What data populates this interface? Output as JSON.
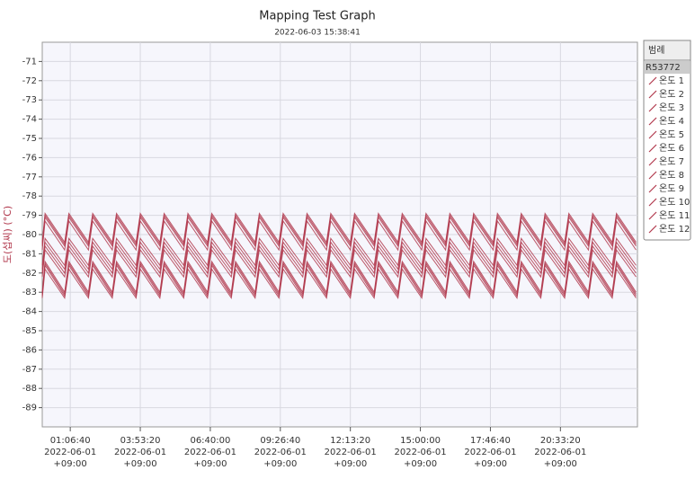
{
  "chart_data": {
    "type": "line",
    "title": "Mapping Test Graph",
    "subtitle": "2022-06-03 15:38:41",
    "y_label": "도(섭씨) (°C)",
    "legend_title": "범례",
    "legend_group": "R53772",
    "color": "#b23a4e",
    "grid": true,
    "xlim": [
      0,
      85000
    ],
    "ylim": [
      -90,
      -70
    ],
    "yticks": [
      -71,
      -72,
      -73,
      -74,
      -75,
      -76,
      -77,
      -78,
      -79,
      -80,
      -81,
      -82,
      -83,
      -84,
      -85,
      -86,
      -87,
      -88,
      -89
    ],
    "xticks": [
      {
        "value": 4000,
        "label": "01:06:40\n2022-06-01\n+09:00"
      },
      {
        "value": 14000,
        "label": "03:53:20\n2022-06-01\n+09:00"
      },
      {
        "value": 24000,
        "label": "06:40:00\n2022-06-01\n+09:00"
      },
      {
        "value": 34000,
        "label": "09:26:40\n2022-06-01\n+09:00"
      },
      {
        "value": 44000,
        "label": "12:13:20\n2022-06-01\n+09:00"
      },
      {
        "value": 54000,
        "label": "15:00:00\n2022-06-01\n+09:00"
      },
      {
        "value": 64000,
        "label": "17:46:40\n2022-06-01\n+09:00"
      },
      {
        "value": 74000,
        "label": "20:33:20\n2022-06-01\n+09:00"
      }
    ],
    "x": [
      0,
      400,
      3200,
      3800,
      6600,
      7200,
      10000,
      10600,
      13400,
      14000,
      16800,
      17400,
      20200,
      20800,
      23600,
      24200,
      27000,
      27600,
      30400,
      31000,
      33800,
      34400,
      37200,
      37800,
      40600,
      41200,
      44000,
      44600,
      47400,
      48000,
      50800,
      51400,
      54200,
      54800,
      57600,
      58200,
      61000,
      61600,
      64400,
      65000,
      67800,
      68400,
      71200,
      71800,
      74600,
      75200,
      78000,
      78600,
      81400,
      82000,
      84800
    ],
    "series": [
      {
        "name": "온도 1",
        "values": [
          -80.4,
          -78.9,
          -80.4,
          -78.9,
          -80.4,
          -78.9,
          -80.4,
          -78.9,
          -80.4,
          -78.9,
          -80.4,
          -78.9,
          -80.4,
          -78.9,
          -80.4,
          -78.9,
          -80.4,
          -78.9,
          -80.4,
          -78.9,
          -80.4,
          -78.9,
          -80.4,
          -78.9,
          -80.4,
          -78.9,
          -80.4,
          -78.9,
          -80.4,
          -78.9,
          -80.4,
          -78.9,
          -80.4,
          -78.9,
          -80.4,
          -78.9,
          -80.4,
          -78.9,
          -80.4,
          -78.9,
          -80.4,
          -78.9,
          -80.4,
          -78.9,
          -80.4,
          -78.9,
          -80.4,
          -78.9,
          -80.4,
          -78.9,
          -80.4
        ]
      },
      {
        "name": "온도 2",
        "values": [
          -80.5,
          -79.0,
          -80.5,
          -79.0,
          -80.5,
          -79.0,
          -80.5,
          -79.0,
          -80.5,
          -79.0,
          -80.5,
          -79.0,
          -80.5,
          -79.0,
          -80.5,
          -79.0,
          -80.5,
          -79.0,
          -80.5,
          -79.0,
          -80.5,
          -79.0,
          -80.5,
          -79.0,
          -80.5,
          -79.0,
          -80.5,
          -79.0,
          -80.5,
          -79.0,
          -80.5,
          -79.0,
          -80.5,
          -79.0,
          -80.5,
          -79.0,
          -80.5,
          -79.0,
          -80.5,
          -79.0,
          -80.5,
          -79.0,
          -80.5,
          -79.0,
          -80.5,
          -79.0,
          -80.5,
          -79.0,
          -80.5,
          -79.0,
          -80.5
        ]
      },
      {
        "name": "온도 3",
        "values": [
          -80.6,
          -79.1,
          -80.6,
          -79.1,
          -80.6,
          -79.1,
          -80.6,
          -79.1,
          -80.6,
          -79.1,
          -80.6,
          -79.1,
          -80.6,
          -79.1,
          -80.6,
          -79.1,
          -80.6,
          -79.1,
          -80.6,
          -79.1,
          -80.6,
          -79.1,
          -80.6,
          -79.1,
          -80.6,
          -79.1,
          -80.6,
          -79.1,
          -80.6,
          -79.1,
          -80.6,
          -79.1,
          -80.6,
          -79.1,
          -80.6,
          -79.1,
          -80.6,
          -79.1,
          -80.6,
          -79.1,
          -80.6,
          -79.1,
          -80.6,
          -79.1,
          -80.6,
          -79.1,
          -80.6,
          -79.1,
          -80.6,
          -79.1,
          -80.6
        ]
      },
      {
        "name": "온도 4",
        "values": [
          -80.8,
          -79.3,
          -80.8,
          -79.3,
          -80.8,
          -79.3,
          -80.8,
          -79.3,
          -80.8,
          -79.3,
          -80.8,
          -79.3,
          -80.8,
          -79.3,
          -80.8,
          -79.3,
          -80.8,
          -79.3,
          -80.8,
          -79.3,
          -80.8,
          -79.3,
          -80.8,
          -79.3,
          -80.8,
          -79.3,
          -80.8,
          -79.3,
          -80.8,
          -79.3,
          -80.8,
          -79.3,
          -80.8,
          -79.3,
          -80.8,
          -79.3,
          -80.8,
          -79.3,
          -80.8,
          -79.3,
          -80.8,
          -79.3,
          -80.8,
          -79.3,
          -80.8,
          -79.3,
          -80.8,
          -79.3,
          -80.8,
          -79.3,
          -80.8
        ]
      },
      {
        "name": "온도 5",
        "values": [
          -81.6,
          -80.2,
          -81.6,
          -80.2,
          -81.6,
          -80.2,
          -81.6,
          -80.2,
          -81.6,
          -80.2,
          -81.6,
          -80.2,
          -81.6,
          -80.2,
          -81.6,
          -80.2,
          -81.6,
          -80.2,
          -81.6,
          -80.2,
          -81.6,
          -80.2,
          -81.6,
          -80.2,
          -81.6,
          -80.2,
          -81.6,
          -80.2,
          -81.6,
          -80.2,
          -81.6,
          -80.2,
          -81.6,
          -80.2,
          -81.6,
          -80.2,
          -81.6,
          -80.2,
          -81.6,
          -80.2,
          -81.6,
          -80.2,
          -81.6,
          -80.2,
          -81.6,
          -80.2,
          -81.6,
          -80.2,
          -81.6,
          -80.2,
          -81.6
        ]
      },
      {
        "name": "온도 6",
        "values": [
          -81.8,
          -80.4,
          -81.8,
          -80.4,
          -81.8,
          -80.4,
          -81.8,
          -80.4,
          -81.8,
          -80.4,
          -81.8,
          -80.4,
          -81.8,
          -80.4,
          -81.8,
          -80.4,
          -81.8,
          -80.4,
          -81.8,
          -80.4,
          -81.8,
          -80.4,
          -81.8,
          -80.4,
          -81.8,
          -80.4,
          -81.8,
          -80.4,
          -81.8,
          -80.4,
          -81.8,
          -80.4,
          -81.8,
          -80.4,
          -81.8,
          -80.4,
          -81.8,
          -80.4,
          -81.8,
          -80.4,
          -81.8,
          -80.4,
          -81.8,
          -80.4,
          -81.8,
          -80.4,
          -81.8,
          -80.4,
          -81.8,
          -80.4,
          -81.8
        ]
      },
      {
        "name": "온도 7",
        "values": [
          -82.0,
          -80.6,
          -82.0,
          -80.6,
          -82.0,
          -80.6,
          -82.0,
          -80.6,
          -82.0,
          -80.6,
          -82.0,
          -80.6,
          -82.0,
          -80.6,
          -82.0,
          -80.6,
          -82.0,
          -80.6,
          -82.0,
          -80.6,
          -82.0,
          -80.6,
          -82.0,
          -80.6,
          -82.0,
          -80.6,
          -82.0,
          -80.6,
          -82.0,
          -80.6,
          -82.0,
          -80.6,
          -82.0,
          -80.6,
          -82.0,
          -80.6,
          -82.0,
          -80.6,
          -82.0,
          -80.6,
          -82.0,
          -80.6,
          -82.0,
          -80.6,
          -82.0,
          -80.6,
          -82.0,
          -80.6,
          -82.0,
          -80.6,
          -82.0
        ]
      },
      {
        "name": "온도 8",
        "values": [
          -82.2,
          -80.8,
          -82.2,
          -80.8,
          -82.2,
          -80.8,
          -82.2,
          -80.8,
          -82.2,
          -80.8,
          -82.2,
          -80.8,
          -82.2,
          -80.8,
          -82.2,
          -80.8,
          -82.2,
          -80.8,
          -82.2,
          -80.8,
          -82.2,
          -80.8,
          -82.2,
          -80.8,
          -82.2,
          -80.8,
          -82.2,
          -80.8,
          -82.2,
          -80.8,
          -82.2,
          -80.8,
          -82.2,
          -80.8,
          -82.2,
          -80.8,
          -82.2,
          -80.8,
          -82.2,
          -80.8,
          -82.2,
          -80.8,
          -82.2,
          -80.8,
          -82.2,
          -80.8,
          -82.2,
          -80.8,
          -82.2,
          -80.8,
          -82.2
        ]
      },
      {
        "name": "온도 9",
        "values": [
          -83.0,
          -81.4,
          -83.0,
          -81.4,
          -83.0,
          -81.4,
          -83.0,
          -81.4,
          -83.0,
          -81.4,
          -83.0,
          -81.4,
          -83.0,
          -81.4,
          -83.0,
          -81.4,
          -83.0,
          -81.4,
          -83.0,
          -81.4,
          -83.0,
          -81.4,
          -83.0,
          -81.4,
          -83.0,
          -81.4,
          -83.0,
          -81.4,
          -83.0,
          -81.4,
          -83.0,
          -81.4,
          -83.0,
          -81.4,
          -83.0,
          -81.4,
          -83.0,
          -81.4,
          -83.0,
          -81.4,
          -83.0,
          -81.4,
          -83.0,
          -81.4,
          -83.0,
          -81.4,
          -83.0,
          -81.4,
          -83.0,
          -81.4,
          -83.0
        ]
      },
      {
        "name": "온도 10",
        "values": [
          -83.1,
          -81.5,
          -83.1,
          -81.5,
          -83.1,
          -81.5,
          -83.1,
          -81.5,
          -83.1,
          -81.5,
          -83.1,
          -81.5,
          -83.1,
          -81.5,
          -83.1,
          -81.5,
          -83.1,
          -81.5,
          -83.1,
          -81.5,
          -83.1,
          -81.5,
          -83.1,
          -81.5,
          -83.1,
          -81.5,
          -83.1,
          -81.5,
          -83.1,
          -81.5,
          -83.1,
          -81.5,
          -83.1,
          -81.5,
          -83.1,
          -81.5,
          -83.1,
          -81.5,
          -83.1,
          -81.5,
          -83.1,
          -81.5,
          -83.1,
          -81.5,
          -83.1,
          -81.5,
          -83.1,
          -81.5,
          -83.1,
          -81.5,
          -83.1
        ]
      },
      {
        "name": "온도 11",
        "values": [
          -83.2,
          -81.6,
          -83.2,
          -81.6,
          -83.2,
          -81.6,
          -83.2,
          -81.6,
          -83.2,
          -81.6,
          -83.2,
          -81.6,
          -83.2,
          -81.6,
          -83.2,
          -81.6,
          -83.2,
          -81.6,
          -83.2,
          -81.6,
          -83.2,
          -81.6,
          -83.2,
          -81.6,
          -83.2,
          -81.6,
          -83.2,
          -81.6,
          -83.2,
          -81.6,
          -83.2,
          -81.6,
          -83.2,
          -81.6,
          -83.2,
          -81.6,
          -83.2,
          -81.6,
          -83.2,
          -81.6,
          -83.2,
          -81.6,
          -83.2,
          -81.6,
          -83.2,
          -81.6,
          -83.2,
          -81.6,
          -83.2,
          -81.6,
          -83.2
        ]
      },
      {
        "name": "온도 12",
        "values": [
          -83.3,
          -81.8,
          -83.3,
          -81.8,
          -83.3,
          -81.8,
          -83.3,
          -81.8,
          -83.3,
          -81.8,
          -83.3,
          -81.8,
          -83.3,
          -81.8,
          -83.3,
          -81.8,
          -83.3,
          -81.8,
          -83.3,
          -81.8,
          -83.3,
          -81.8,
          -83.3,
          -81.8,
          -83.3,
          -81.8,
          -83.3,
          -81.8,
          -83.3,
          -81.8,
          -83.3,
          -81.8,
          -83.3,
          -81.8,
          -83.3,
          -81.8,
          -83.3,
          -81.8,
          -83.3,
          -81.8,
          -83.3,
          -81.8,
          -83.3,
          -81.8,
          -83.3,
          -81.8,
          -83.3,
          -81.8,
          -83.3,
          -81.8,
          -83.3
        ]
      }
    ]
  }
}
